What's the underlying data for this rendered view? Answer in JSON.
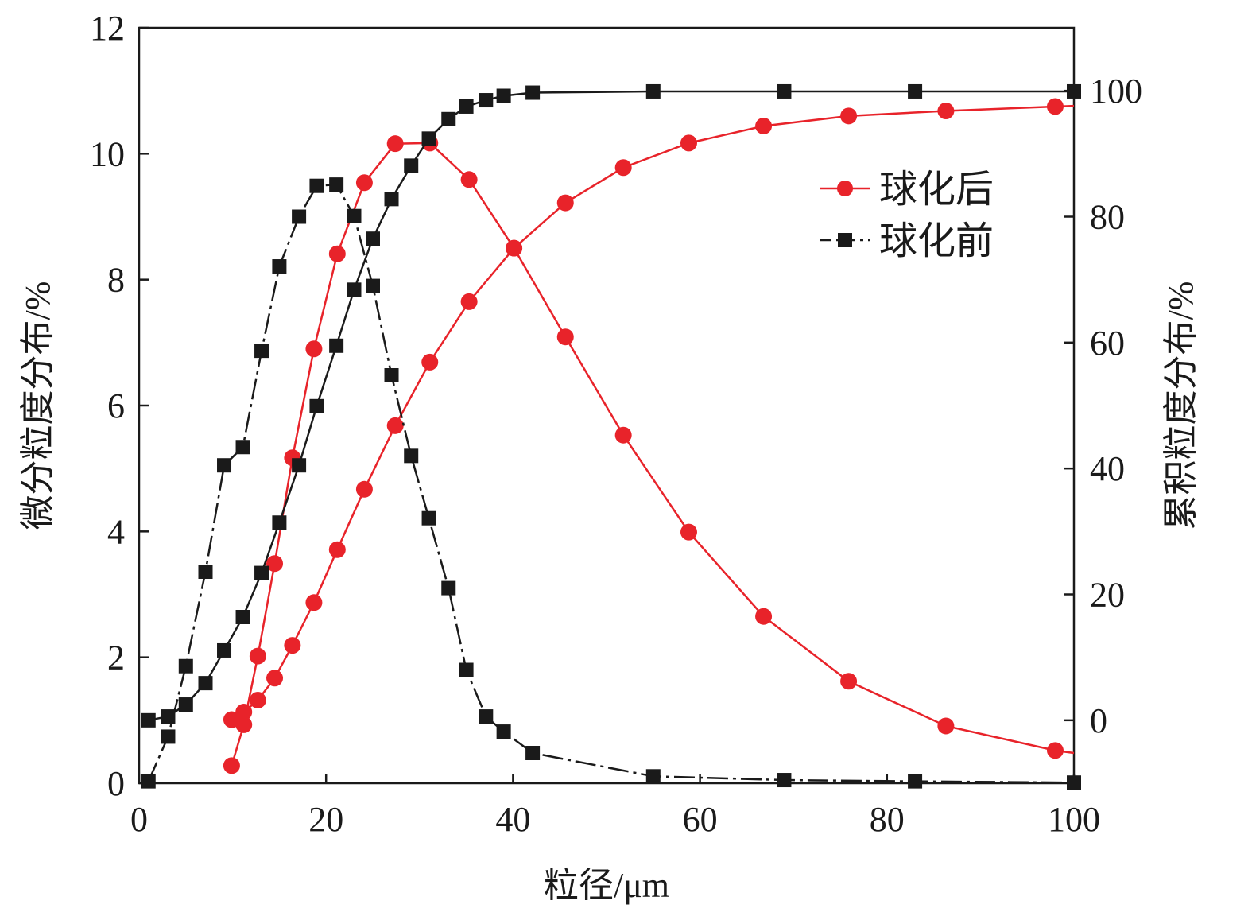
{
  "chart_data": {
    "type": "line",
    "title": "",
    "xlabel": "粒径/μm",
    "ylabel_left": "微分粒度分布/%",
    "ylabel_right": "累积粒度分布/%",
    "xlim": [
      0,
      100
    ],
    "ylim_left": [
      0,
      12
    ],
    "ylim_right": [
      -10,
      110
    ],
    "xticks": [
      0,
      20,
      40,
      60,
      80,
      100
    ],
    "yticks_left": [
      0,
      2,
      4,
      6,
      8,
      10,
      12
    ],
    "yticks_right": [
      0,
      20,
      40,
      60,
      80,
      100
    ],
    "grid": false,
    "legend_position": "top-right",
    "legend": [
      {
        "label": "球化后",
        "color": "#e8232a",
        "marker": "circle",
        "line": "solid"
      },
      {
        "label": "球化前",
        "color": "#1a1a1a",
        "marker": "square",
        "line": "dashdot"
      }
    ],
    "series": [
      {
        "name": "球化后 微分",
        "axis": "left",
        "color": "#e8232a",
        "marker": "circle",
        "line": "solid",
        "x": [
          9.9,
          11.2,
          12.7,
          14.5,
          16.4,
          18.7,
          21.2,
          24.1,
          27.4,
          31.1,
          35.3,
          40.1,
          45.6,
          51.8,
          58.8,
          66.8,
          75.9,
          86.3,
          98.0,
          100
        ],
        "y": [
          0.28,
          0.93,
          2.02,
          3.49,
          5.17,
          6.9,
          8.41,
          9.54,
          10.16,
          10.17,
          9.59,
          8.5,
          7.09,
          5.53,
          3.99,
          2.65,
          1.62,
          0.91,
          0.52,
          0.48
        ],
        "markers_count": 19
      },
      {
        "name": "球化后 累积",
        "axis": "right",
        "color": "#e8232a",
        "marker": "circle",
        "line": "solid",
        "x": [
          9.9,
          11.2,
          12.7,
          14.5,
          16.4,
          18.7,
          21.2,
          24.1,
          27.4,
          31.1,
          35.3,
          40.1,
          45.6,
          51.8,
          58.8,
          66.8,
          75.9,
          86.3,
          98.0,
          100
        ],
        "y": [
          0.1,
          1.3,
          3.2,
          6.7,
          11.9,
          18.7,
          27.1,
          36.7,
          46.8,
          56.9,
          66.5,
          75.0,
          82.2,
          87.8,
          91.7,
          94.4,
          96.0,
          96.8,
          97.5,
          97.6
        ],
        "markers_count": 19
      },
      {
        "name": "球化前 微分",
        "axis": "left",
        "color": "#1a1a1a",
        "marker": "square",
        "line": "dashdot",
        "x": [
          1.0,
          3.1,
          5.0,
          7.1,
          9.1,
          11.1,
          13.1,
          15.0,
          17.1,
          19.0,
          21.1,
          23.0,
          25.0,
          27.0,
          29.1,
          31.0,
          33.1,
          35.0,
          37.1,
          39.0,
          42.1,
          55.0,
          69.0,
          83.0,
          100
        ],
        "y": [
          0.03,
          0.74,
          1.86,
          3.36,
          5.05,
          5.34,
          6.87,
          8.21,
          9.0,
          9.49,
          9.51,
          9.01,
          7.9,
          6.48,
          5.2,
          4.21,
          3.1,
          1.8,
          1.06,
          0.82,
          0.48,
          0.11,
          0.05,
          0.03,
          0.01
        ],
        "markers_count": 25
      },
      {
        "name": "球化前 累积",
        "axis": "right",
        "color": "#1a1a1a",
        "marker": "square",
        "line": "solid",
        "x": [
          1.0,
          3.1,
          5.0,
          7.1,
          9.1,
          11.1,
          13.1,
          15.0,
          17.1,
          19.0,
          21.1,
          23.0,
          25.0,
          27.0,
          29.1,
          31.0,
          33.1,
          35.0,
          37.1,
          39.0,
          42.1,
          55.0,
          69.0,
          83.0,
          100
        ],
        "y": [
          0,
          0.6,
          2.5,
          5.9,
          11.1,
          16.4,
          23.4,
          31.4,
          40.5,
          49.9,
          59.5,
          68.4,
          76.5,
          82.8,
          88.1,
          92.4,
          95.5,
          97.5,
          98.5,
          99.2,
          99.7,
          99.9,
          99.9,
          99.9,
          99.9
        ],
        "markers_count": 25
      }
    ]
  }
}
